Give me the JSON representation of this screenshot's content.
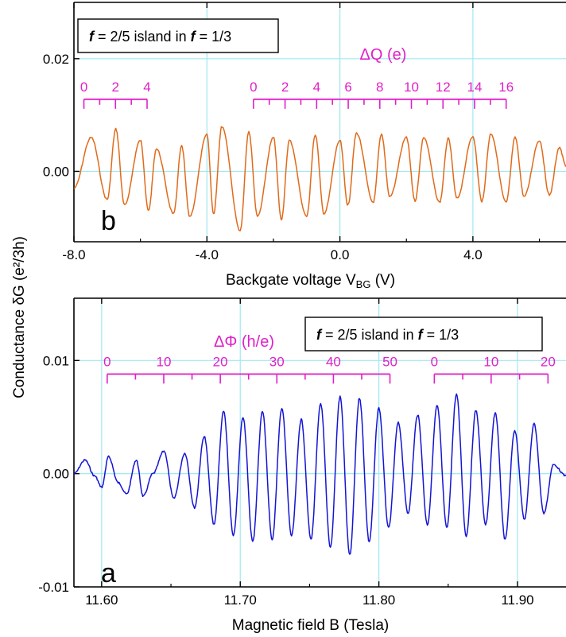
{
  "figure": {
    "ylabel_shared": "Conductance  δG (e²/3h)"
  },
  "chart_data": [
    {
      "panel": "b",
      "type": "line",
      "panel_letter": "b",
      "legend_text": {
        "f1": "f",
        "rest1": " = 2/5  island in ",
        "f2": "f",
        "rest2": " = 1/3"
      },
      "xlabel": "Backgate voltage  V",
      "xlabel_sub": "BG",
      "xlabel_unit": " (V)",
      "xlim": [
        -8.0,
        6.8
      ],
      "ylim": [
        -0.0125,
        0.03
      ],
      "xticks": [
        -8.0,
        -4.0,
        0.0,
        4.0
      ],
      "xtick_labels": [
        "-8.0",
        "-4.0",
        "0.0",
        "4.0"
      ],
      "yticks": [
        0.0,
        0.02
      ],
      "ytick_labels": [
        "0.00",
        "0.02"
      ],
      "grid": true,
      "line_color": "#e06a1a",
      "ruler_color": "#e020c8",
      "ruler_title": "ΔQ (e)",
      "ruler_y": 0.0128,
      "rulers": [
        {
          "x_start": -7.7,
          "x_end": -5.8,
          "labels": [
            "0",
            "2",
            "4"
          ],
          "label_x": [
            -7.7,
            -6.75,
            -5.8
          ],
          "minor_count": 5
        },
        {
          "x_start": -2.6,
          "x_end": 5.0,
          "labels": [
            "0",
            "2",
            "4",
            "6",
            "8",
            "10",
            "12",
            "14",
            "16"
          ],
          "label_x": [
            -2.6,
            -1.65,
            -0.7,
            0.25,
            1.2,
            2.15,
            3.1,
            4.05,
            5.0
          ],
          "minor_count": 17
        }
      ],
      "series": [
        {
          "x": [
            -8.0,
            -7.48,
            -7.0,
            -6.74,
            -6.48,
            -6.0,
            -5.76,
            -5.52,
            -5.0,
            -4.76,
            -4.52,
            -4.0,
            -3.8,
            -3.55,
            -3.0,
            -2.74,
            -2.48,
            -2.0,
            -1.76,
            -1.52,
            -1.0,
            -0.74,
            -0.48,
            0.0,
            0.24,
            0.5,
            1.0,
            1.25,
            1.5,
            2.0,
            2.26,
            2.52,
            3.0,
            3.26,
            3.52,
            4.0,
            4.27,
            4.54,
            5.0,
            5.27,
            5.54,
            6.0,
            6.3,
            6.6,
            6.8
          ],
          "y": [
            -0.003,
            0.006,
            -0.005,
            0.0075,
            -0.006,
            0.0055,
            -0.007,
            0.004,
            -0.0075,
            0.0045,
            -0.008,
            0.0065,
            -0.0075,
            0.008,
            -0.0105,
            0.007,
            -0.008,
            0.006,
            -0.0085,
            0.0055,
            -0.008,
            0.0065,
            -0.0075,
            0.0055,
            -0.006,
            0.0068,
            -0.0055,
            0.0066,
            -0.0045,
            0.006,
            -0.0052,
            0.006,
            -0.0055,
            0.0058,
            -0.0048,
            0.0062,
            -0.0053,
            0.0067,
            -0.0055,
            0.006,
            -0.0045,
            0.0055,
            -0.0042,
            0.0042,
            0.001
          ]
        }
      ]
    },
    {
      "panel": "a",
      "type": "line",
      "panel_letter": "a",
      "legend_text": {
        "f1": "f",
        "rest1": " = 2/5  island in ",
        "f2": "f",
        "rest2": " = 1/3"
      },
      "xlabel": "Magnetic field  B  (Tesla)",
      "xlim": [
        11.58,
        11.935
      ],
      "ylim": [
        -0.01,
        0.0155
      ],
      "xticks": [
        11.6,
        11.7,
        11.8,
        11.9
      ],
      "xtick_labels": [
        "11.60",
        "11.70",
        "11.80",
        "11.90"
      ],
      "yticks": [
        -0.01,
        0.0,
        0.01
      ],
      "ytick_labels": [
        "-0.01",
        "0.00",
        "0.01"
      ],
      "grid": true,
      "line_color": "#1414d4",
      "ruler_color": "#e020c8",
      "ruler_title": "ΔΦ (h/e)",
      "ruler_y": 0.0088,
      "rulers": [
        {
          "x_start": 11.604,
          "x_end": 11.808,
          "labels": [
            "0",
            "10",
            "20",
            "30",
            "40",
            "50"
          ],
          "label_x": [
            11.604,
            11.6448,
            11.6856,
            11.7264,
            11.7672,
            11.808
          ],
          "minor_count": 11
        },
        {
          "x_start": 11.84,
          "x_end": 11.922,
          "labels": [
            "0",
            "10",
            "20"
          ],
          "label_x": [
            11.84,
            11.881,
            11.922
          ],
          "minor_count": 5
        }
      ],
      "series": [
        {
          "x": [
            11.58,
            11.588,
            11.595,
            11.6,
            11.605,
            11.612,
            11.618,
            11.625,
            11.63,
            11.637,
            11.645,
            11.652,
            11.66,
            11.667,
            11.674,
            11.681,
            11.688,
            11.695,
            11.702,
            11.709,
            11.716,
            11.723,
            11.73,
            11.737,
            11.744,
            11.751,
            11.758,
            11.765,
            11.772,
            11.779,
            11.786,
            11.793,
            11.8,
            11.807,
            11.814,
            11.821,
            11.828,
            11.835,
            11.842,
            11.849,
            11.856,
            11.863,
            11.87,
            11.877,
            11.884,
            11.891,
            11.898,
            11.905,
            11.912,
            11.919,
            11.926,
            11.935
          ],
          "y": [
            0.0,
            0.0012,
            -0.0002,
            -0.0012,
            0.0015,
            -0.0008,
            -0.0018,
            0.0012,
            -0.002,
            0.0,
            0.002,
            -0.0022,
            0.0018,
            -0.003,
            0.0033,
            -0.0045,
            0.0055,
            -0.0055,
            0.005,
            -0.006,
            0.0055,
            -0.0058,
            0.0058,
            -0.0055,
            0.0048,
            -0.0058,
            0.0062,
            -0.0065,
            0.0068,
            -0.0072,
            0.0067,
            -0.006,
            0.0058,
            -0.0048,
            0.0045,
            -0.0035,
            0.0052,
            -0.0045,
            0.006,
            -0.0048,
            0.007,
            -0.0055,
            0.0056,
            -0.0045,
            0.0054,
            -0.0058,
            0.0038,
            -0.004,
            0.0044,
            -0.0035,
            0.0008,
            -0.0002
          ]
        }
      ]
    }
  ]
}
